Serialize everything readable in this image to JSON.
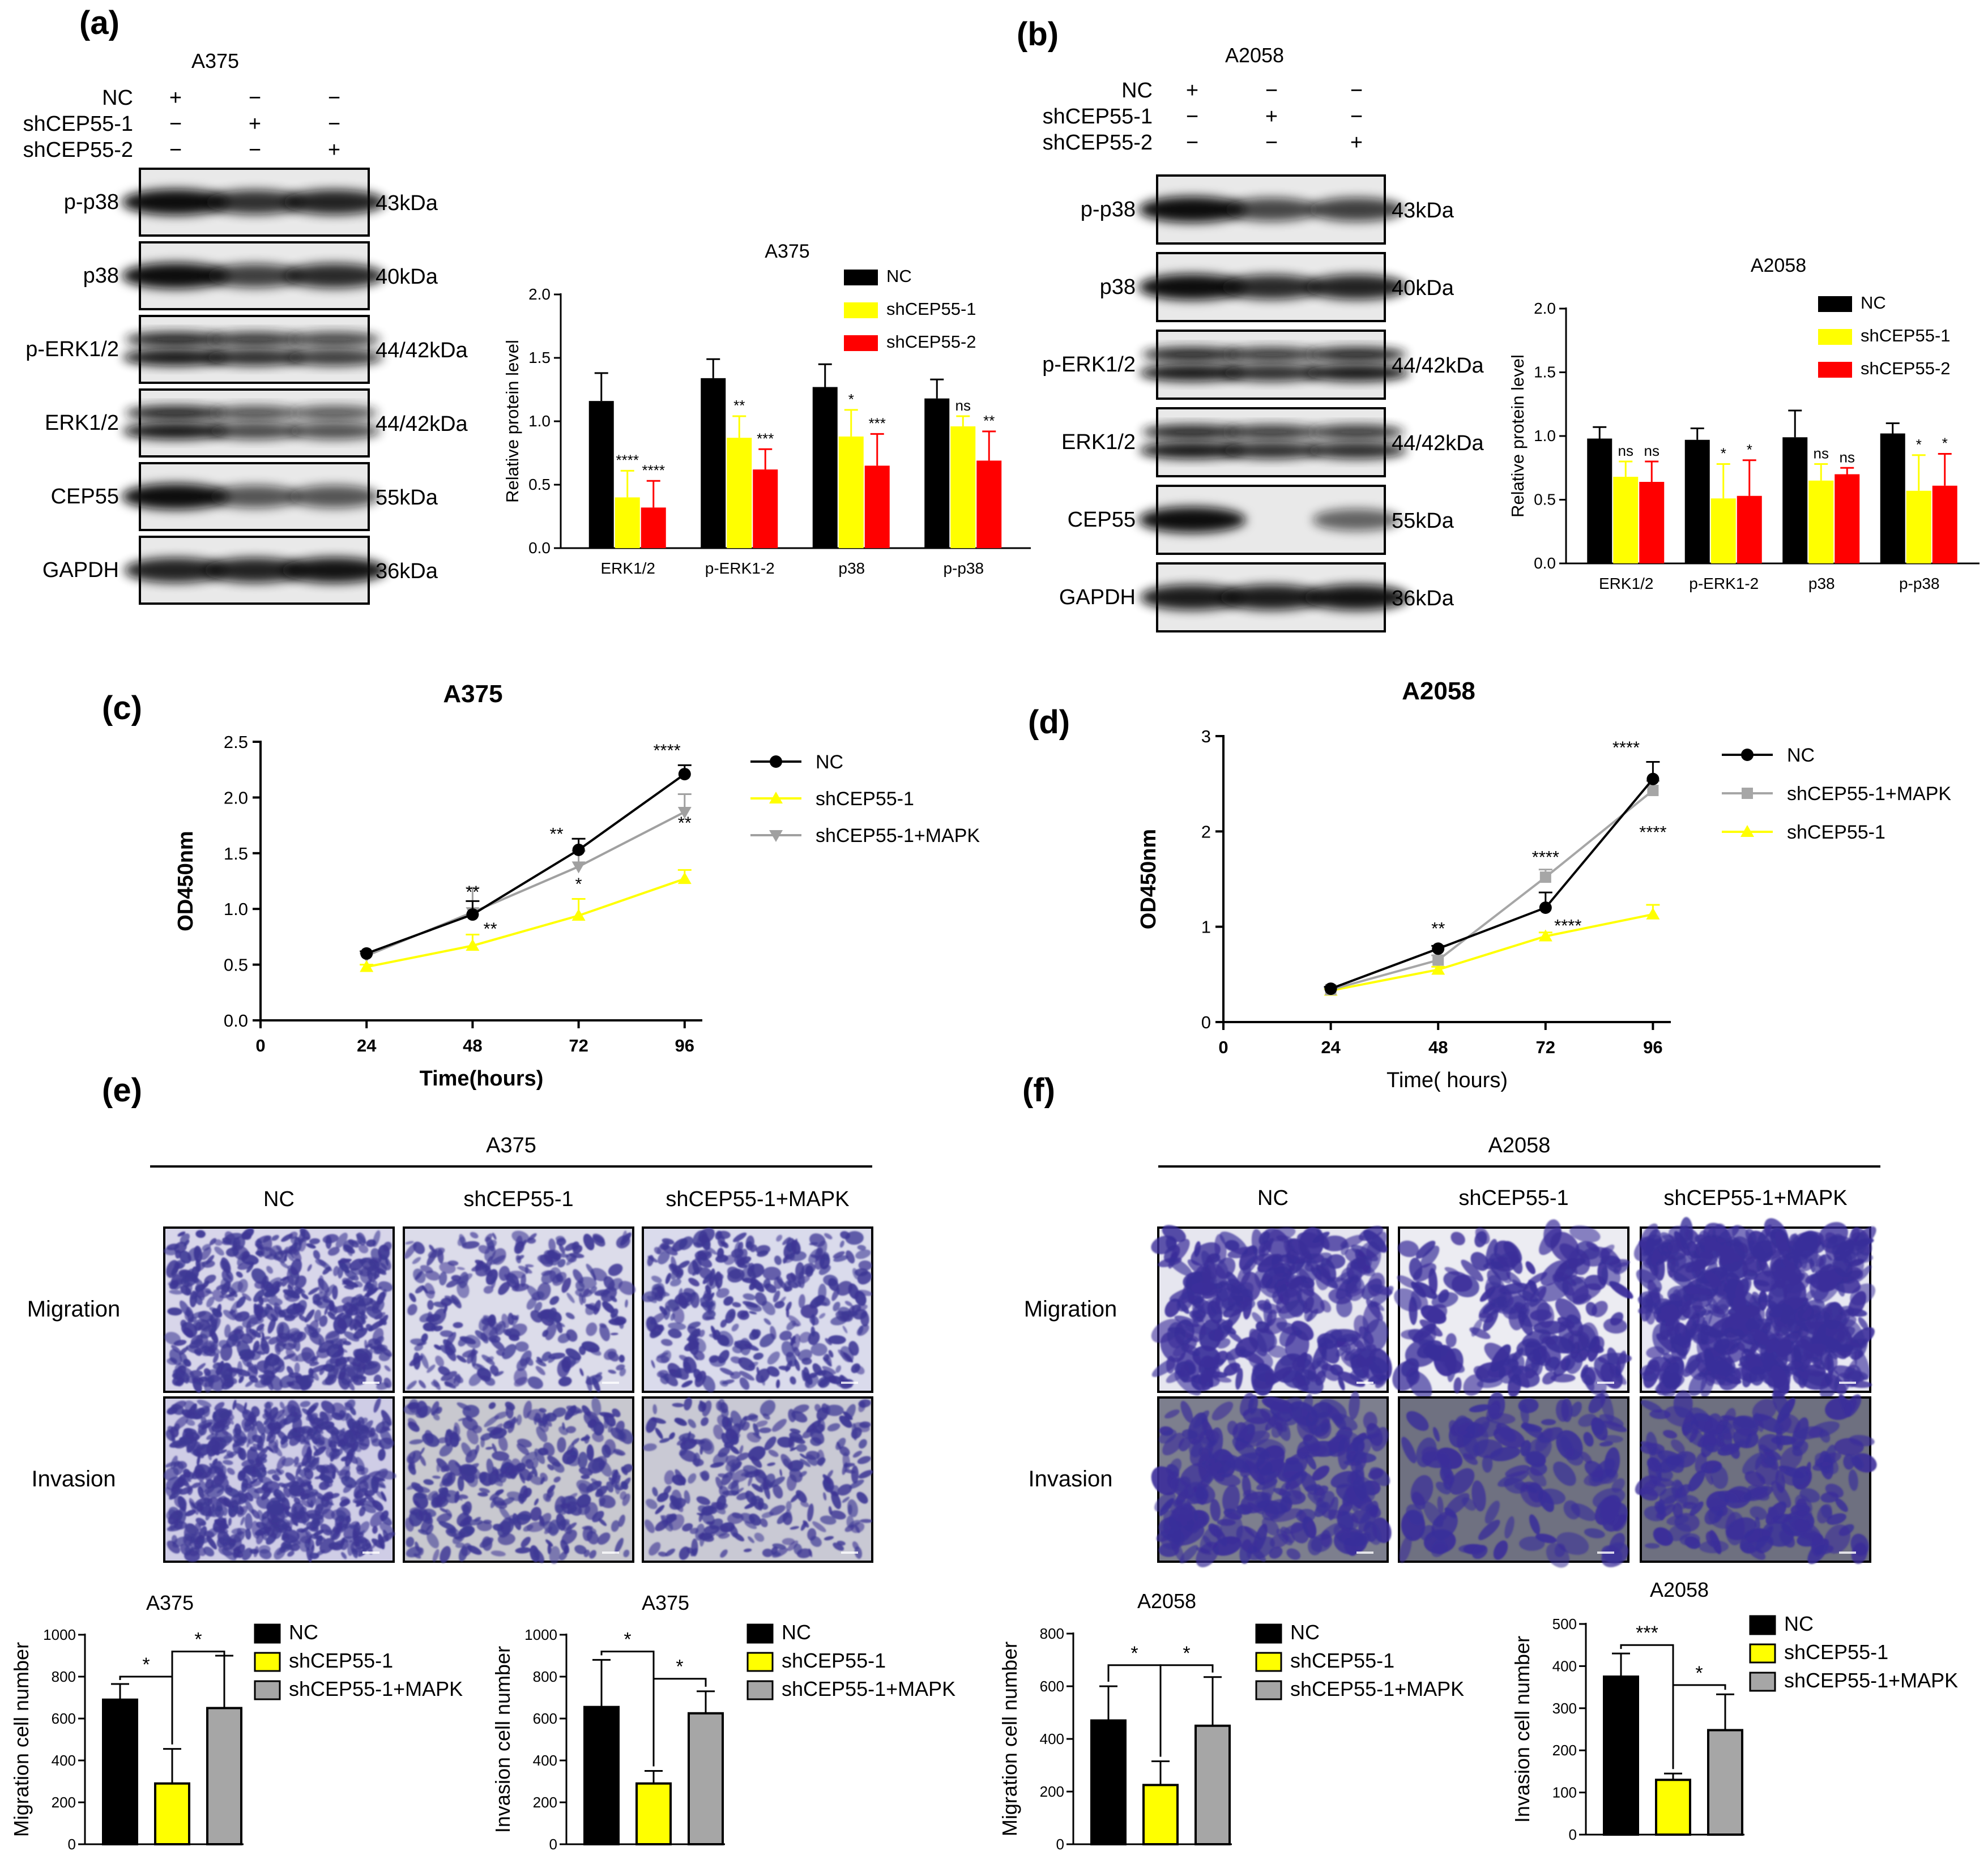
{
  "panels": {
    "a": {
      "label": "(a)",
      "cell_line": "A375",
      "conditions": [
        "NC",
        "shCEP55-1",
        "shCEP55-2"
      ],
      "signs": [
        [
          "+",
          "−",
          "−"
        ],
        [
          "−",
          "+",
          "−"
        ],
        [
          "−",
          "−",
          "+"
        ]
      ],
      "blots": [
        {
          "name": "p-p38",
          "kda": "43kDa"
        },
        {
          "name": "p38",
          "kda": "40kDa"
        },
        {
          "name": "p-ERK1/2",
          "kda": "44/42kDa"
        },
        {
          "name": "ERK1/2",
          "kda": "44/42kDa"
        },
        {
          "name": "CEP55",
          "kda": "55kDa"
        },
        {
          "name": "GAPDH",
          "kda": "36kDa"
        }
      ]
    },
    "b": {
      "label": "(b)",
      "cell_line": "A2058",
      "conditions": [
        "NC",
        "shCEP55-1",
        "shCEP55-2"
      ],
      "signs": [
        [
          "+",
          "−",
          "−"
        ],
        [
          "−",
          "+",
          "−"
        ],
        [
          "−",
          "−",
          "+"
        ]
      ],
      "blots": [
        {
          "name": "p-p38",
          "kda": "43kDa"
        },
        {
          "name": "p38",
          "kda": "40kDa"
        },
        {
          "name": "p-ERK1/2",
          "kda": "44/42kDa"
        },
        {
          "name": "ERK1/2",
          "kda": "44/42kDa"
        },
        {
          "name": "CEP55",
          "kda": "55kDa"
        },
        {
          "name": "GAPDH",
          "kda": "36kDa"
        }
      ]
    },
    "c": {
      "label": "(c)"
    },
    "d": {
      "label": "(d)"
    },
    "e": {
      "label": "(e)",
      "cell_line": "A375",
      "columns": [
        "NC",
        "shCEP55-1",
        "shCEP55-1+MAPK"
      ],
      "rows": [
        "Migration",
        "Invasion"
      ]
    },
    "f": {
      "label": "(f)",
      "cell_line": "A2058",
      "columns": [
        "NC",
        "shCEP55-1",
        "shCEP55-1+MAPK"
      ],
      "rows": [
        "Migration",
        "Invasion"
      ]
    }
  },
  "colors": {
    "black": "#000000",
    "yellow": "#ffff00",
    "red": "#ff0000",
    "gray": "#a6a6a6",
    "light_gray": "#a0a0a0"
  },
  "chart_data": [
    {
      "id": "a_bar",
      "type": "bar",
      "title": "A375",
      "ylabel": "Relative protein level",
      "ylim": [
        0,
        2.0
      ],
      "yticks": [
        "0.0",
        "0.5",
        "1.0",
        "1.5",
        "2.0"
      ],
      "categories": [
        "ERK1/2",
        "p-ERK1-2",
        "p38",
        "p-p38"
      ],
      "series": [
        {
          "name": "NC",
          "color": "#000000",
          "values": [
            1.16,
            1.34,
            1.27,
            1.18
          ],
          "errors": [
            0.22,
            0.15,
            0.18,
            0.15
          ],
          "sig": [
            "",
            "",
            "",
            ""
          ]
        },
        {
          "name": "shCEP55-1",
          "color": "#ffff00",
          "values": [
            0.4,
            0.87,
            0.88,
            0.96
          ],
          "errors": [
            0.21,
            0.17,
            0.21,
            0.08
          ],
          "sig": [
            "****",
            "**",
            "*",
            "ns"
          ]
        },
        {
          "name": "shCEP55-2",
          "color": "#ff0000",
          "values": [
            0.32,
            0.62,
            0.65,
            0.69
          ],
          "errors": [
            0.21,
            0.16,
            0.25,
            0.23
          ],
          "sig": [
            "****",
            "***",
            "***",
            "**"
          ]
        }
      ]
    },
    {
      "id": "b_bar",
      "type": "bar",
      "title": "A2058",
      "ylabel": "Relative protein level",
      "ylim": [
        0,
        2.0
      ],
      "yticks": [
        "0.0",
        "0.5",
        "1.0",
        "1.5",
        "2.0"
      ],
      "categories": [
        "ERK1/2",
        "p-ERK1-2",
        "p38",
        "p-p38"
      ],
      "series": [
        {
          "name": "NC",
          "color": "#000000",
          "values": [
            0.98,
            0.97,
            0.99,
            1.02
          ],
          "errors": [
            0.09,
            0.09,
            0.21,
            0.08
          ],
          "sig": [
            "",
            "",
            "",
            ""
          ]
        },
        {
          "name": "shCEP55-1",
          "color": "#ffff00",
          "values": [
            0.68,
            0.51,
            0.65,
            0.57
          ],
          "errors": [
            0.12,
            0.27,
            0.13,
            0.28
          ],
          "sig": [
            "ns",
            "*",
            "ns",
            "*"
          ]
        },
        {
          "name": "shCEP55-2",
          "color": "#ff0000",
          "values": [
            0.64,
            0.53,
            0.7,
            0.61
          ],
          "errors": [
            0.16,
            0.28,
            0.05,
            0.25
          ],
          "sig": [
            "ns",
            "*",
            "ns",
            "*"
          ]
        }
      ]
    },
    {
      "id": "c_line",
      "type": "line",
      "title": "A375",
      "xlabel": "Time(hours)",
      "ylabel": "OD450nm",
      "xlim": [
        0,
        100
      ],
      "ylim": [
        0,
        2.5
      ],
      "xticks": [
        "0",
        "24",
        "48",
        "72",
        "96"
      ],
      "yticks": [
        "0.0",
        "0.5",
        "1.0",
        "1.5",
        "2.0",
        "2.5"
      ],
      "x": [
        24,
        48,
        72,
        96
      ],
      "series": [
        {
          "name": "NC",
          "color": "#000000",
          "marker": "circle",
          "values": [
            0.6,
            0.95,
            1.53,
            2.21
          ],
          "errors": [
            0.02,
            0.12,
            0.1,
            0.08
          ]
        },
        {
          "name": "shCEP55-1",
          "color": "#ffff00",
          "marker": "triangle",
          "values": [
            0.48,
            0.67,
            0.94,
            1.27
          ],
          "errors": [
            0.02,
            0.1,
            0.15,
            0.08
          ]
        },
        {
          "name": "shCEP55-1+MAPK",
          "color": "#a0a0a0",
          "marker": "triangle-down",
          "values": [
            0.58,
            0.97,
            1.38,
            1.87
          ],
          "errors": [
            0.02,
            0.22,
            0.14,
            0.16
          ]
        }
      ],
      "annotations": [
        {
          "x": 48,
          "y": 1.1,
          "text": "**"
        },
        {
          "x": 52,
          "y": 0.77,
          "text": "**"
        },
        {
          "x": 67,
          "y": 1.62,
          "text": "**"
        },
        {
          "x": 72,
          "y": 1.17,
          "text": "*"
        },
        {
          "x": 92,
          "y": 2.37,
          "text": "****"
        },
        {
          "x": 96,
          "y": 1.72,
          "text": "**"
        }
      ]
    },
    {
      "id": "d_line",
      "type": "line",
      "title": "A2058",
      "xlabel": "Time( hours)",
      "ylabel": "OD450nm",
      "xlim": [
        0,
        100
      ],
      "ylim": [
        0,
        3
      ],
      "xticks": [
        "0",
        "24",
        "48",
        "72",
        "96"
      ],
      "yticks": [
        "0",
        "1",
        "2",
        "3"
      ],
      "x": [
        24,
        48,
        72,
        96
      ],
      "series": [
        {
          "name": "NC",
          "color": "#000000",
          "marker": "circle",
          "values": [
            0.35,
            0.77,
            1.2,
            2.55
          ],
          "errors": [
            0.02,
            0.03,
            0.16,
            0.18
          ]
        },
        {
          "name": "shCEP55-1+MAPK",
          "color": "#a6a6a6",
          "marker": "square",
          "values": [
            0.34,
            0.65,
            1.52,
            2.43
          ],
          "errors": [
            0.02,
            0.05,
            0.08,
            0.1
          ]
        },
        {
          "name": "shCEP55-1",
          "color": "#ffff00",
          "marker": "triangle",
          "values": [
            0.33,
            0.55,
            0.9,
            1.13
          ],
          "errors": [
            0.02,
            0.03,
            0.04,
            0.1
          ]
        }
      ],
      "annotations": [
        {
          "x": 48,
          "y": 0.92,
          "text": "**"
        },
        {
          "x": 72,
          "y": 1.67,
          "text": "****"
        },
        {
          "x": 77,
          "y": 0.95,
          "text": "****"
        },
        {
          "x": 90,
          "y": 2.82,
          "text": "****"
        },
        {
          "x": 96,
          "y": 1.93,
          "text": "****"
        }
      ]
    },
    {
      "id": "e_mig",
      "type": "bar",
      "title": "A375",
      "ylabel": "Migration cell number",
      "ylim": [
        0,
        1000
      ],
      "yticks": [
        "0",
        "200",
        "400",
        "600",
        "800",
        "1000"
      ],
      "categories": [
        "NC",
        "shCEP55-1",
        "shCEP55-1+MAPK"
      ],
      "colors": [
        "#000000",
        "#ffff00",
        "#a6a6a6"
      ],
      "values": [
        690,
        290,
        650
      ],
      "errors": [
        75,
        165,
        250
      ],
      "brackets": [
        {
          "from": 0,
          "to": 1,
          "y": 800,
          "text": "*"
        },
        {
          "from": 1,
          "to": 2,
          "y": 920,
          "text": "*"
        }
      ]
    },
    {
      "id": "e_inv",
      "type": "bar",
      "title": "A375",
      "ylabel": "Invasion cell number",
      "ylim": [
        0,
        1000
      ],
      "yticks": [
        "0",
        "200",
        "400",
        "600",
        "800",
        "1000"
      ],
      "categories": [
        "NC",
        "shCEP55-1",
        "shCEP55-1+MAPK"
      ],
      "colors": [
        "#000000",
        "#ffff00",
        "#a6a6a6"
      ],
      "values": [
        655,
        290,
        625
      ],
      "errors": [
        225,
        60,
        105
      ],
      "brackets": [
        {
          "from": 0,
          "to": 1,
          "y": 920,
          "text": "*"
        },
        {
          "from": 1,
          "to": 2,
          "y": 790,
          "text": "*"
        }
      ]
    },
    {
      "id": "f_mig",
      "type": "bar",
      "title": "A2058",
      "ylabel": "Migration cell number",
      "ylim": [
        0,
        800
      ],
      "yticks": [
        "0",
        "200",
        "400",
        "600",
        "800"
      ],
      "categories": [
        "NC",
        "shCEP55-1",
        "shCEP55-1+MAPK"
      ],
      "colors": [
        "#000000",
        "#ffff00",
        "#a6a6a6"
      ],
      "values": [
        470,
        225,
        450
      ],
      "errors": [
        130,
        90,
        185
      ],
      "brackets": [
        {
          "from": 0,
          "to": 1,
          "y": 680,
          "text": "*"
        },
        {
          "from": 1,
          "to": 2,
          "y": 680,
          "text": "*"
        }
      ]
    },
    {
      "id": "f_inv",
      "type": "bar",
      "title": "A2058",
      "ylabel": "Invasion cell number",
      "ylim": [
        0,
        500
      ],
      "yticks": [
        "0",
        "100",
        "200",
        "300",
        "400",
        "500"
      ],
      "categories": [
        "NC",
        "shCEP55-1",
        "shCEP55-1+MAPK"
      ],
      "colors": [
        "#000000",
        "#ffff00",
        "#a6a6a6"
      ],
      "values": [
        375,
        130,
        248
      ],
      "errors": [
        55,
        15,
        85
      ],
      "brackets": [
        {
          "from": 0,
          "to": 1,
          "y": 450,
          "text": "***"
        },
        {
          "from": 1,
          "to": 2,
          "y": 355,
          "text": "*"
        }
      ]
    }
  ]
}
